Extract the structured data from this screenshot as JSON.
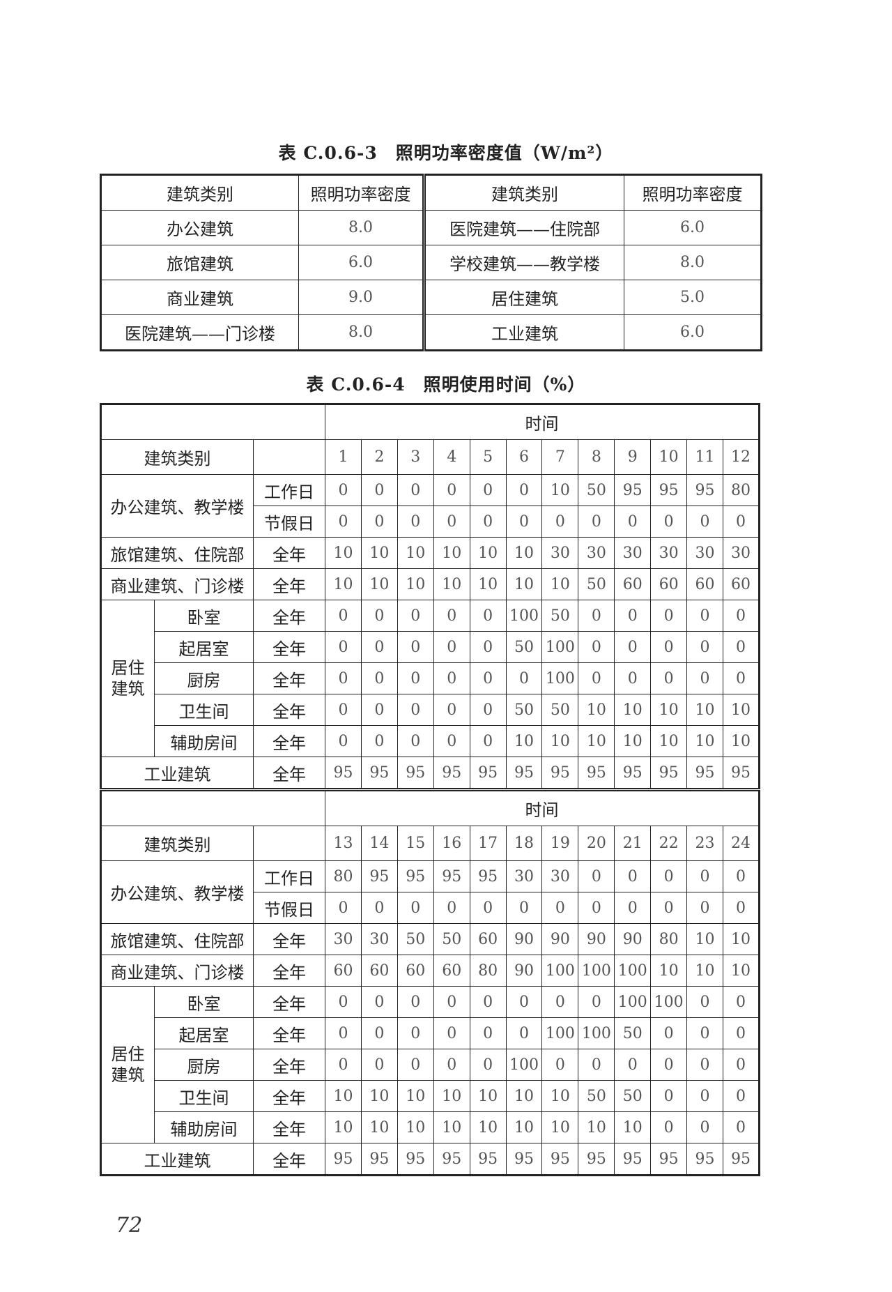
{
  "table1": {
    "title": "表 C.0.6-3　照明功率密度值（W/m²）",
    "headers": [
      "建筑类别",
      "照明功率密度",
      "建筑类别",
      "照明功率密度"
    ],
    "rows": [
      [
        "办公建筑",
        "8.0",
        "医院建筑——住院部",
        "6.0"
      ],
      [
        "旅馆建筑",
        "6.0",
        "学校建筑——教学楼",
        "8.0"
      ],
      [
        "商业建筑",
        "9.0",
        "居住建筑",
        "5.0"
      ],
      [
        "医院建筑——门诊楼",
        "8.0",
        "工业建筑",
        "6.0"
      ]
    ]
  },
  "table2": {
    "title": "表 C.0.6-4　照明使用时间（%）",
    "time_header": "时间",
    "category_header": "建筑类别",
    "office_label": "办公建筑、教学楼",
    "residential_label": "居住建筑",
    "halves": [
      {
        "hours": [
          "1",
          "2",
          "3",
          "4",
          "5",
          "6",
          "7",
          "8",
          "9",
          "10",
          "11",
          "12"
        ],
        "office": [
          {
            "label": "工作日",
            "values": [
              "0",
              "0",
              "0",
              "0",
              "0",
              "0",
              "10",
              "50",
              "95",
              "95",
              "95",
              "80"
            ]
          },
          {
            "label": "节假日",
            "values": [
              "0",
              "0",
              "0",
              "0",
              "0",
              "0",
              "0",
              "0",
              "0",
              "0",
              "0",
              "0"
            ]
          }
        ],
        "simple_top": [
          {
            "label": "旅馆建筑、住院部",
            "period": "全年",
            "values": [
              "10",
              "10",
              "10",
              "10",
              "10",
              "10",
              "30",
              "30",
              "30",
              "30",
              "30",
              "30"
            ]
          },
          {
            "label": "商业建筑、门诊楼",
            "period": "全年",
            "values": [
              "10",
              "10",
              "10",
              "10",
              "10",
              "10",
              "10",
              "50",
              "60",
              "60",
              "60",
              "60"
            ]
          }
        ],
        "residential": [
          {
            "label": "卧室",
            "period": "全年",
            "values": [
              "0",
              "0",
              "0",
              "0",
              "0",
              "100",
              "50",
              "0",
              "0",
              "0",
              "0",
              "0"
            ]
          },
          {
            "label": "起居室",
            "period": "全年",
            "values": [
              "0",
              "0",
              "0",
              "0",
              "0",
              "50",
              "100",
              "0",
              "0",
              "0",
              "0",
              "0"
            ]
          },
          {
            "label": "厨房",
            "period": "全年",
            "values": [
              "0",
              "0",
              "0",
              "0",
              "0",
              "0",
              "100",
              "0",
              "0",
              "0",
              "0",
              "0"
            ]
          },
          {
            "label": "卫生间",
            "period": "全年",
            "values": [
              "0",
              "0",
              "0",
              "0",
              "0",
              "50",
              "50",
              "10",
              "10",
              "10",
              "10",
              "10"
            ]
          },
          {
            "label": "辅助房间",
            "period": "全年",
            "values": [
              "0",
              "0",
              "0",
              "0",
              "0",
              "10",
              "10",
              "10",
              "10",
              "10",
              "10",
              "10"
            ]
          }
        ],
        "industrial": {
          "label": "工业建筑",
          "period": "全年",
          "values": [
            "95",
            "95",
            "95",
            "95",
            "95",
            "95",
            "95",
            "95",
            "95",
            "95",
            "95",
            "95"
          ]
        }
      },
      {
        "hours": [
          "13",
          "14",
          "15",
          "16",
          "17",
          "18",
          "19",
          "20",
          "21",
          "22",
          "23",
          "24"
        ],
        "office": [
          {
            "label": "工作日",
            "values": [
              "80",
              "95",
              "95",
              "95",
              "95",
              "30",
              "30",
              "0",
              "0",
              "0",
              "0",
              "0"
            ]
          },
          {
            "label": "节假日",
            "values": [
              "0",
              "0",
              "0",
              "0",
              "0",
              "0",
              "0",
              "0",
              "0",
              "0",
              "0",
              "0"
            ]
          }
        ],
        "simple_top": [
          {
            "label": "旅馆建筑、住院部",
            "period": "全年",
            "values": [
              "30",
              "30",
              "50",
              "50",
              "60",
              "90",
              "90",
              "90",
              "90",
              "80",
              "10",
              "10"
            ]
          },
          {
            "label": "商业建筑、门诊楼",
            "period": "全年",
            "values": [
              "60",
              "60",
              "60",
              "60",
              "80",
              "90",
              "100",
              "100",
              "100",
              "10",
              "10",
              "10"
            ]
          }
        ],
        "residential": [
          {
            "label": "卧室",
            "period": "全年",
            "values": [
              "0",
              "0",
              "0",
              "0",
              "0",
              "0",
              "0",
              "0",
              "100",
              "100",
              "0",
              "0"
            ]
          },
          {
            "label": "起居室",
            "period": "全年",
            "values": [
              "0",
              "0",
              "0",
              "0",
              "0",
              "0",
              "100",
              "100",
              "50",
              "0",
              "0",
              "0"
            ]
          },
          {
            "label": "厨房",
            "period": "全年",
            "values": [
              "0",
              "0",
              "0",
              "0",
              "0",
              "100",
              "0",
              "0",
              "0",
              "0",
              "0",
              "0"
            ]
          },
          {
            "label": "卫生间",
            "period": "全年",
            "values": [
              "10",
              "10",
              "10",
              "10",
              "10",
              "10",
              "10",
              "50",
              "50",
              "0",
              "0",
              "0"
            ]
          },
          {
            "label": "辅助房间",
            "period": "全年",
            "values": [
              "10",
              "10",
              "10",
              "10",
              "10",
              "10",
              "10",
              "10",
              "10",
              "0",
              "0",
              "0"
            ]
          }
        ],
        "industrial": {
          "label": "工业建筑",
          "period": "全年",
          "values": [
            "95",
            "95",
            "95",
            "95",
            "95",
            "95",
            "95",
            "95",
            "95",
            "95",
            "95",
            "95"
          ]
        }
      }
    ]
  },
  "page_number": "72"
}
